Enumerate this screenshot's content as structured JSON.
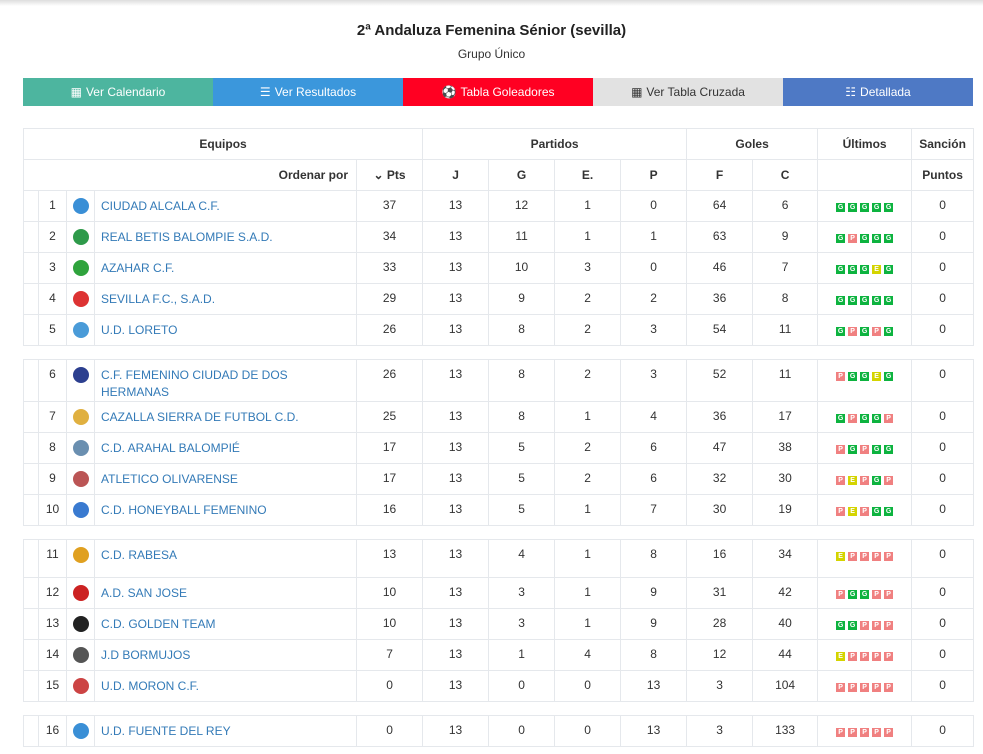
{
  "title": "2ª Andaluza Femenina Sénior (sevilla)",
  "subtitle": "Grupo Único",
  "buttons": [
    {
      "label": "Ver Calendario",
      "icon": "calendar-icon",
      "color": "#4db59f"
    },
    {
      "label": "Ver Resultados",
      "icon": "list-icon",
      "color": "#3b97dc"
    },
    {
      "label": "Tabla Goleadores",
      "icon": "soccer-ball-icon",
      "color": "#ff0022"
    },
    {
      "label": "Ver Tabla Cruzada",
      "icon": "table-icon",
      "color": "#e2e2e2"
    },
    {
      "label": "Detallada",
      "icon": "detail-list-icon",
      "color": "#4e79c5"
    }
  ],
  "header": {
    "equipos": "Equipos",
    "partidos": "Partidos",
    "goles": "Goles",
    "ultimos": "Últimos",
    "sancion": "Sanción",
    "ordenar": "Ordenar por",
    "pts": "Pts",
    "j": "J",
    "g": "G",
    "e": "E.",
    "p": "P",
    "f": "F",
    "c": "C",
    "puntos": "Puntos"
  },
  "rows": [
    {
      "pos": "1",
      "name": "CIUDAD ALCALA C.F.",
      "logo": "#3a8fd6",
      "pts": "37",
      "j": "13",
      "g": "12",
      "e": "1",
      "p": "0",
      "f": "64",
      "c": "6",
      "last": [
        "G",
        "G",
        "G",
        "G",
        "G"
      ],
      "sancion": "0"
    },
    {
      "pos": "2",
      "name": "REAL BETIS BALOMPIE S.A.D.",
      "logo": "#2e9a4a",
      "pts": "34",
      "j": "13",
      "g": "11",
      "e": "1",
      "p": "1",
      "f": "63",
      "c": "9",
      "last": [
        "G",
        "P",
        "G",
        "G",
        "G"
      ],
      "sancion": "0"
    },
    {
      "pos": "3",
      "name": "AZAHAR C.F.",
      "logo": "#2fa33c",
      "pts": "33",
      "j": "13",
      "g": "10",
      "e": "3",
      "p": "0",
      "f": "46",
      "c": "7",
      "last": [
        "G",
        "G",
        "G",
        "E",
        "G"
      ],
      "sancion": "0"
    },
    {
      "pos": "4",
      "name": "SEVILLA F.C., S.A.D.",
      "logo": "#d33",
      "pts": "29",
      "j": "13",
      "g": "9",
      "e": "2",
      "p": "2",
      "f": "36",
      "c": "8",
      "last": [
        "G",
        "G",
        "G",
        "G",
        "G"
      ],
      "sancion": "0"
    },
    {
      "pos": "5",
      "name": "U.D. LORETO",
      "logo": "#4a9bd8",
      "pts": "26",
      "j": "13",
      "g": "8",
      "e": "2",
      "p": "3",
      "f": "54",
      "c": "11",
      "last": [
        "G",
        "P",
        "G",
        "P",
        "G"
      ],
      "sancion": "0"
    },
    {
      "sep": true
    },
    {
      "pos": "6",
      "name": "C.F. FEMENINO CIUDAD DE DOS HERMANAS",
      "logo": "#2c3f8f",
      "pts": "26",
      "j": "13",
      "g": "8",
      "e": "2",
      "p": "3",
      "f": "52",
      "c": "11",
      "last": [
        "P",
        "G",
        "G",
        "E",
        "G"
      ],
      "sancion": "0"
    },
    {
      "pos": "7",
      "name": "CAZALLA SIERRA DE FUTBOL C.D.",
      "logo": "#e0b040",
      "pts": "25",
      "j": "13",
      "g": "8",
      "e": "1",
      "p": "4",
      "f": "36",
      "c": "17",
      "last": [
        "G",
        "P",
        "G",
        "G",
        "P"
      ],
      "sancion": "0"
    },
    {
      "pos": "8",
      "name": "C.D. ARAHAL BALOMPIÉ",
      "logo": "#6a8fb0",
      "pts": "17",
      "j": "13",
      "g": "5",
      "e": "2",
      "p": "6",
      "f": "47",
      "c": "38",
      "last": [
        "P",
        "G",
        "P",
        "G",
        "G"
      ],
      "sancion": "0"
    },
    {
      "pos": "9",
      "name": "ATLETICO OLIVARENSE",
      "logo": "#b55",
      "pts": "17",
      "j": "13",
      "g": "5",
      "e": "2",
      "p": "6",
      "f": "32",
      "c": "30",
      "last": [
        "P",
        "E",
        "P",
        "G",
        "P"
      ],
      "sancion": "0"
    },
    {
      "pos": "10",
      "name": "C.D. HONEYBALL FEMENINO",
      "logo": "#3a7ad0",
      "pts": "16",
      "j": "13",
      "g": "5",
      "e": "1",
      "p": "7",
      "f": "30",
      "c": "19",
      "last": [
        "P",
        "E",
        "P",
        "G",
        "G"
      ],
      "sancion": "0"
    },
    {
      "sep": true
    },
    {
      "pos": "11",
      "name": "C.D. RABESA",
      "logo": "#e0a020",
      "pts": "13",
      "j": "13",
      "g": "4",
      "e": "1",
      "p": "8",
      "f": "16",
      "c": "34",
      "last": [
        "E",
        "P",
        "P",
        "P",
        "P"
      ],
      "sancion": "0"
    },
    {
      "pos": "12",
      "name": "A.D. SAN JOSE",
      "logo": "#c22",
      "pts": "10",
      "j": "13",
      "g": "3",
      "e": "1",
      "p": "9",
      "f": "31",
      "c": "42",
      "last": [
        "P",
        "G",
        "G",
        "P",
        "P"
      ],
      "sancion": "0"
    },
    {
      "pos": "13",
      "name": "C.D. GOLDEN TEAM",
      "logo": "#222",
      "pts": "10",
      "j": "13",
      "g": "3",
      "e": "1",
      "p": "9",
      "f": "28",
      "c": "40",
      "last": [
        "G",
        "G",
        "P",
        "P",
        "P"
      ],
      "sancion": "0"
    },
    {
      "pos": "14",
      "name": "J.D BORMUJOS",
      "logo": "#555",
      "pts": "7",
      "j": "13",
      "g": "1",
      "e": "4",
      "p": "8",
      "f": "12",
      "c": "44",
      "last": [
        "E",
        "P",
        "P",
        "P",
        "P"
      ],
      "sancion": "0"
    },
    {
      "pos": "15",
      "name": "U.D. MORON C.F.",
      "logo": "#c44",
      "pts": "0",
      "j": "13",
      "g": "0",
      "e": "0",
      "p": "13",
      "f": "3",
      "c": "104",
      "last": [
        "P",
        "P",
        "P",
        "P",
        "P"
      ],
      "sancion": "0"
    },
    {
      "sep": true
    },
    {
      "pos": "16",
      "name": "U.D. FUENTE DEL REY",
      "logo": "#3a8fd6",
      "pts": "0",
      "j": "13",
      "g": "0",
      "e": "0",
      "p": "13",
      "f": "3",
      "c": "133",
      "last": [
        "P",
        "P",
        "P",
        "P",
        "P"
      ],
      "sancion": "0"
    }
  ]
}
